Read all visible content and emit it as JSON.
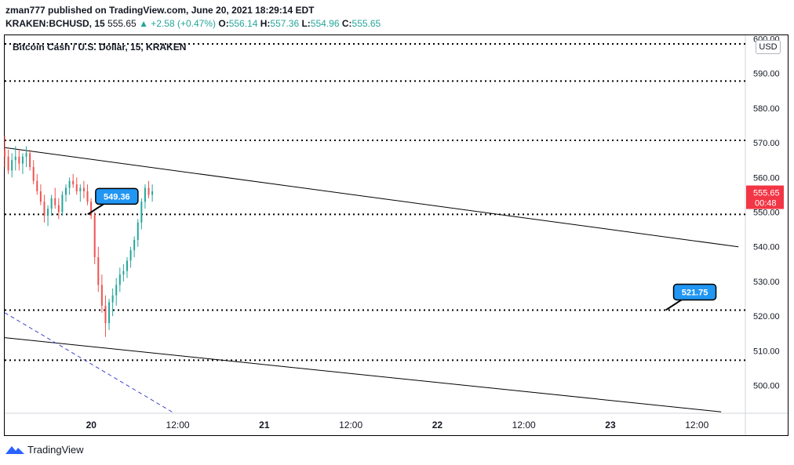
{
  "header": {
    "line1": "zman777 published on TradingView.com, June 20, 2021 18:29:14 EDT",
    "symbol": "KRAKEN:BCHUSD, 15",
    "last_price": "555.65",
    "change": "▲ +2.58 (+0.47%)",
    "open_label": "O:",
    "open": "556.14",
    "high_label": "H:",
    "high": "557.36",
    "low_label": "L:",
    "low": "554.96",
    "close_label": "C:",
    "close": "555.65"
  },
  "chart_title": "Bitcoin Cash / U.S. Dollar, 15, KRAKEN",
  "currency_badge": "USD",
  "footer": {
    "brand": "TradingView"
  },
  "colors": {
    "up": "#26a69a",
    "down": "#ef5350",
    "label_bg": "#2196f3",
    "last_price_bg": "#f23645",
    "trendline": "#000000",
    "dashed": "#3d44c9"
  },
  "chart_data": {
    "type": "candlestick",
    "ylim": [
      492,
      601
    ],
    "x_ticks": [
      "20",
      "12:00",
      "21",
      "12:00",
      "22",
      "12:00",
      "23",
      "12:00"
    ],
    "y_ticks": [
      "600.00",
      "590.00",
      "580.00",
      "570.00",
      "560.00",
      "550.00",
      "540.00",
      "530.00",
      "520.00",
      "510.00",
      "500.00"
    ],
    "last_price_label": "555.65",
    "countdown": "00:48",
    "horizontal_levels": [
      598.5,
      587.8,
      570.7,
      549.36,
      521.75,
      507.3
    ],
    "annotations": [
      {
        "text": "549.36",
        "price": 549.36,
        "time": 0.24
      },
      {
        "text": "521.75",
        "price": 521.75,
        "time": 1.91
      }
    ],
    "trendlines": [
      {
        "from": {
          "time": 0,
          "price": 568.6
        },
        "to": {
          "time": 2.12,
          "price": 540.0
        }
      },
      {
        "from": {
          "time": 0,
          "price": 513.8
        },
        "to": {
          "time": 2.07,
          "price": 492.4
        }
      }
    ],
    "dashed_lines": [
      {
        "from": {
          "time": 0,
          "price": 521.0
        },
        "to": {
          "time": 0.49,
          "price": 492.0
        }
      }
    ],
    "time_ticks": [
      0.25,
      0.5,
      0.75,
      1.0,
      1.25,
      1.5,
      1.75,
      2.0
    ],
    "candles_start_time": 0,
    "candle_interval": 0.0104,
    "candles_ohlc": [
      [
        568,
        572,
        563,
        566
      ],
      [
        566,
        568,
        561,
        562
      ],
      [
        562,
        567,
        560,
        565
      ],
      [
        565,
        569,
        562,
        566
      ],
      [
        566,
        568,
        562,
        564
      ],
      [
        564,
        567,
        561,
        566
      ],
      [
        566,
        569,
        563,
        567
      ],
      [
        567,
        568,
        562,
        563
      ],
      [
        563,
        565,
        558,
        559
      ],
      [
        559,
        561,
        555,
        556
      ],
      [
        556,
        558,
        552,
        553
      ],
      [
        553,
        555,
        547,
        549
      ],
      [
        549,
        552,
        546,
        551
      ],
      [
        551,
        555,
        549,
        554
      ],
      [
        554,
        557,
        551,
        552
      ],
      [
        552,
        554,
        548,
        550
      ],
      [
        550,
        556,
        549,
        555
      ],
      [
        555,
        558,
        553,
        557
      ],
      [
        557,
        560,
        555,
        559
      ],
      [
        559,
        561,
        557,
        558
      ],
      [
        558,
        560,
        555,
        556
      ],
      [
        556,
        558,
        553,
        557
      ],
      [
        557,
        559,
        554,
        556
      ],
      [
        556,
        558,
        552,
        553
      ],
      [
        553,
        554,
        548,
        549
      ],
      [
        549,
        550,
        535,
        537
      ],
      [
        537,
        540,
        527,
        529
      ],
      [
        529,
        532,
        521,
        523
      ],
      [
        523,
        526,
        514,
        518
      ],
      [
        518,
        525,
        516,
        524
      ],
      [
        524,
        528,
        520,
        526
      ],
      [
        526,
        531,
        523,
        529
      ],
      [
        529,
        534,
        527,
        532
      ],
      [
        532,
        535,
        530,
        533
      ],
      [
        533,
        537,
        531,
        536
      ],
      [
        536,
        540,
        534,
        539
      ],
      [
        539,
        543,
        537,
        542
      ],
      [
        542,
        548,
        540,
        547
      ],
      [
        547,
        554,
        545,
        553
      ],
      [
        553,
        558,
        551,
        557
      ],
      [
        557,
        559,
        554,
        555
      ],
      [
        555,
        558,
        553,
        556
      ]
    ]
  }
}
